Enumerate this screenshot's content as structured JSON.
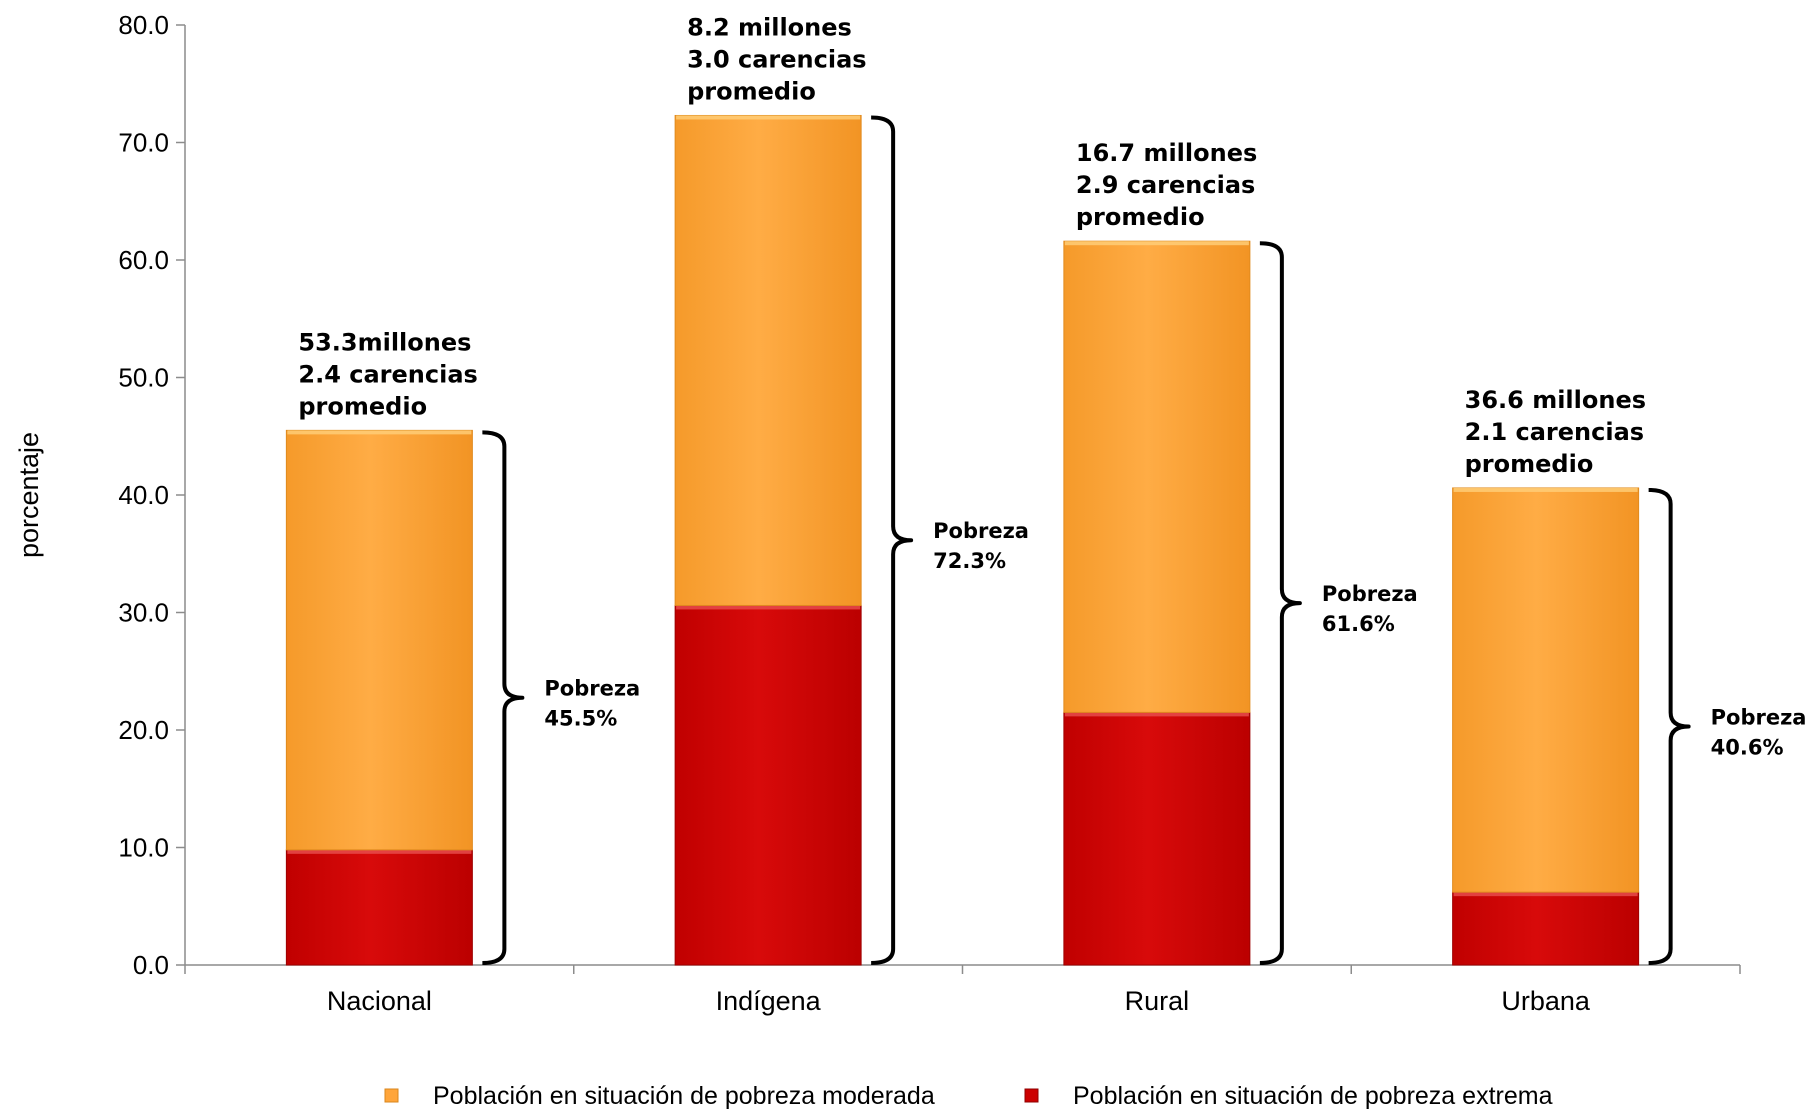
{
  "chart_data": {
    "type": "bar",
    "stacked": true,
    "categories": [
      "Nacional",
      "Indígena",
      "Rural",
      "Urbana"
    ],
    "series": [
      {
        "name": "Población en situación de pobreza extrema",
        "values": [
          9.8,
          30.6,
          21.5,
          6.2
        ],
        "color": "#cc0000"
      },
      {
        "name": "Población en situación de pobreza moderada",
        "values": [
          35.7,
          41.7,
          40.1,
          34.4
        ],
        "color": "#ffa53a"
      }
    ],
    "ylabel": "porcentaje",
    "ylim": [
      0,
      80
    ],
    "yticks": [
      "0.0",
      "10.0",
      "20.0",
      "30.0",
      "40.0",
      "50.0",
      "60.0",
      "70.0",
      "80.0"
    ],
    "annotations": [
      {
        "lines": [
          "53.3millones",
          "2.4 carencias",
          "promedio"
        ],
        "total": 45.5,
        "pobreza_label": "Pobreza",
        "pobreza_value": "45.5%"
      },
      {
        "lines": [
          "8.2 millones",
          "3.0  carencias",
          "promedio"
        ],
        "total": 72.3,
        "pobreza_label": "Pobreza",
        "pobreza_value": "72.3%"
      },
      {
        "lines": [
          "16.7 millones",
          "2.9 carencias",
          "promedio"
        ],
        "total": 61.6,
        "pobreza_label": "Pobreza",
        "pobreza_value": "61.6%"
      },
      {
        "lines": [
          "36.6 millones",
          "2.1 carencias",
          "promedio"
        ],
        "total": 40.6,
        "pobreza_label": "Pobreza",
        "pobreza_value": "40.6%"
      }
    ],
    "legend": [
      {
        "label": "Población en situación de pobreza moderada",
        "color": "#ffa53a"
      },
      {
        "label": "Población en situación de pobreza extrema",
        "color": "#cc0000"
      }
    ],
    "grid": false,
    "legend_position": "bottom"
  }
}
